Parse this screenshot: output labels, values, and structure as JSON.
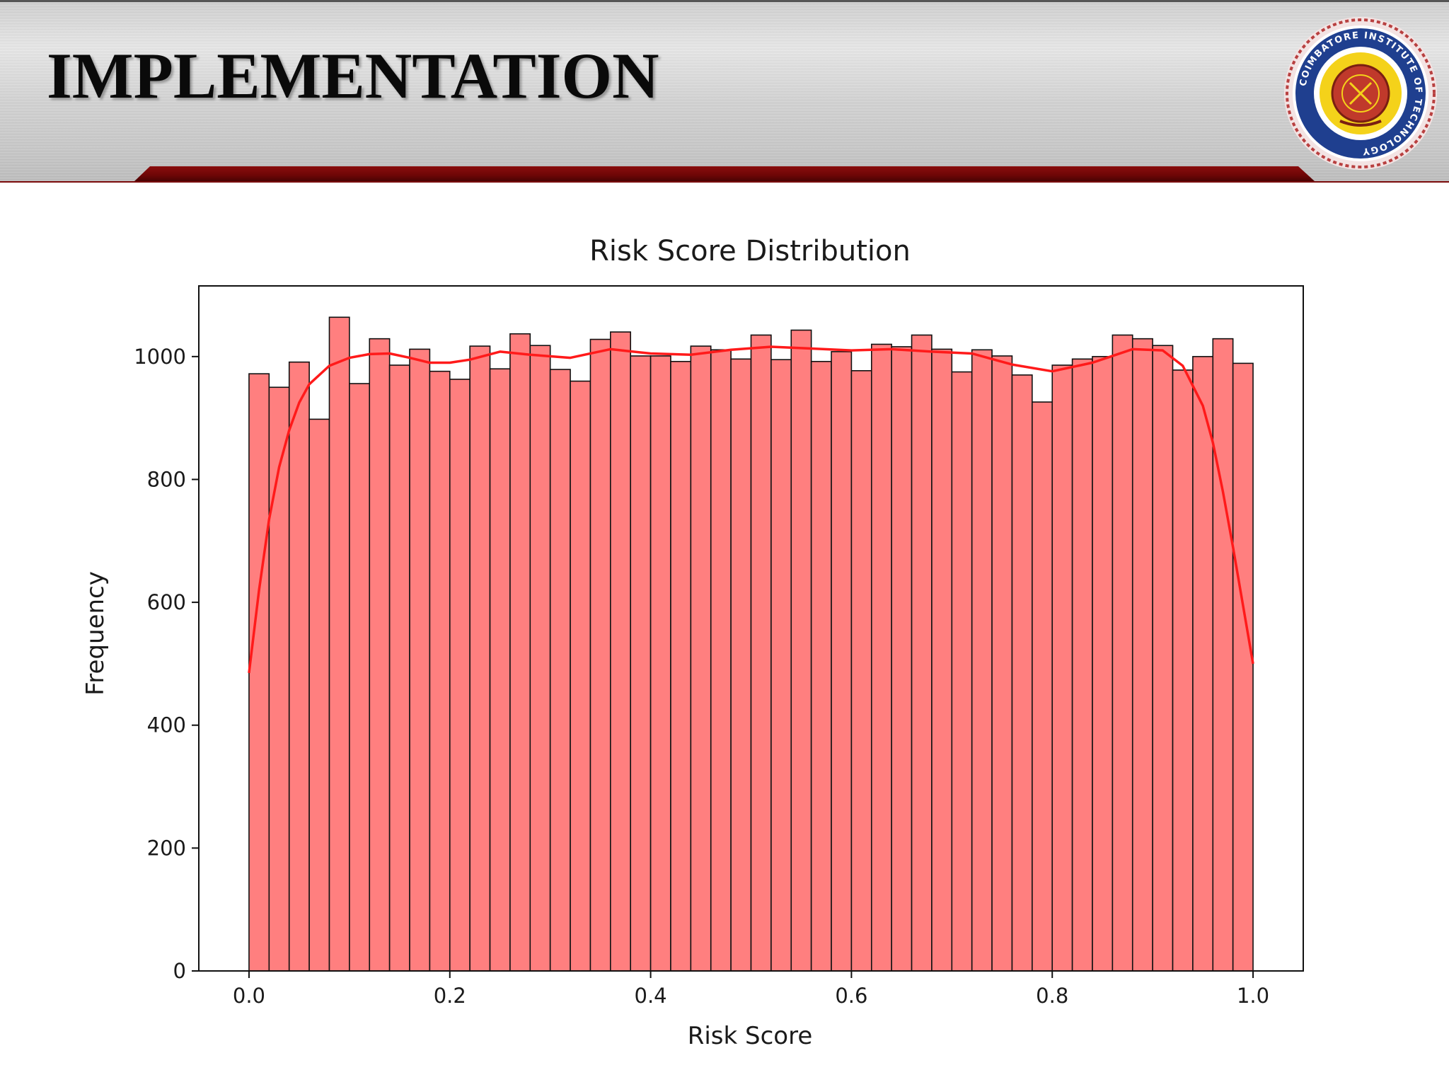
{
  "slide": {
    "title": "IMPLEMENTATION"
  },
  "logo": {
    "icon": "institute-seal-icon",
    "text": "COIMBATORE INSTITUTE OF TECHNOLOGY",
    "colors": {
      "ring": "#1f3f8f",
      "inner": "#f4d21a",
      "center": "#c0392b"
    }
  },
  "colors": {
    "accent": "#7a0a0a",
    "bar_fill": "#ff7f7f",
    "bar_edge": "#111111",
    "kde_line": "#ff1a1a"
  },
  "chart_data": {
    "type": "bar",
    "title": "Risk Score Distribution",
    "xlabel": "Risk Score",
    "ylabel": "Frequency",
    "xlim": [
      -0.05,
      1.05
    ],
    "ylim": [
      0,
      1115
    ],
    "xticks": [
      0.0,
      0.2,
      0.4,
      0.6,
      0.8,
      1.0
    ],
    "xtick_labels": [
      "0.0",
      "0.2",
      "0.4",
      "0.6",
      "0.8",
      "1.0"
    ],
    "yticks": [
      0,
      200,
      400,
      600,
      800,
      1000
    ],
    "ytick_labels": [
      "0",
      "200",
      "400",
      "600",
      "800",
      "1000"
    ],
    "bin_range": [
      0.0,
      1.0
    ],
    "bin_count": 50,
    "values": [
      972,
      950,
      991,
      898,
      1064,
      956,
      1029,
      986,
      1012,
      976,
      963,
      1017,
      980,
      1037,
      1018,
      979,
      960,
      1028,
      1040,
      1001,
      1001,
      992,
      1017,
      1011,
      996,
      1035,
      995,
      1043,
      992,
      1008,
      977,
      1020,
      1016,
      1035,
      1012,
      975,
      1011,
      1001,
      970,
      926,
      986,
      996,
      1000,
      1035,
      1029,
      1018,
      978,
      1000,
      1029,
      989
    ],
    "kde_line": {
      "x": [
        0.0,
        0.01,
        0.02,
        0.03,
        0.04,
        0.05,
        0.06,
        0.08,
        0.1,
        0.12,
        0.14,
        0.16,
        0.18,
        0.2,
        0.22,
        0.25,
        0.28,
        0.32,
        0.36,
        0.4,
        0.44,
        0.48,
        0.52,
        0.56,
        0.6,
        0.64,
        0.68,
        0.72,
        0.76,
        0.8,
        0.84,
        0.88,
        0.91,
        0.93,
        0.95,
        0.96,
        0.97,
        0.98,
        0.99,
        1.0
      ],
      "y": [
        485,
        620,
        735,
        820,
        880,
        925,
        955,
        985,
        998,
        1004,
        1005,
        998,
        990,
        990,
        995,
        1008,
        1003,
        998,
        1012,
        1005,
        1003,
        1011,
        1016,
        1013,
        1010,
        1012,
        1008,
        1005,
        987,
        976,
        990,
        1012,
        1010,
        985,
        920,
        860,
        780,
        690,
        595,
        500
      ]
    },
    "grid": false,
    "legend": "none"
  }
}
